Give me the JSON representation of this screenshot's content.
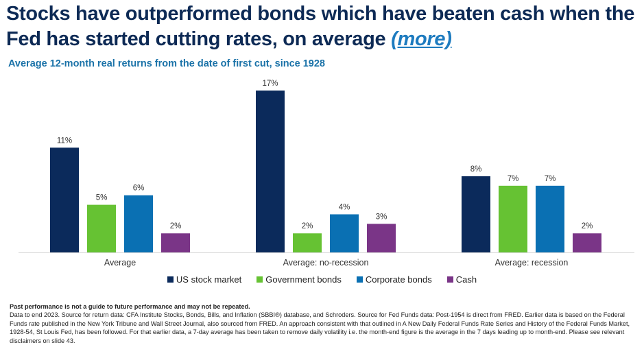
{
  "header": {
    "title": "Stocks have outperformed bonds which have beaten cash when the Fed has started cutting rates, on average ",
    "more_link": "(more)",
    "subtitle": "Average 12-month real returns from the date of first cut, since 1928"
  },
  "chart_data": {
    "type": "bar",
    "title": "Average 12-month real returns from the date of first cut, since 1928",
    "xlabel": "",
    "ylabel": "",
    "ylim": [
      0,
      17
    ],
    "grid": false,
    "legend_position": "bottom",
    "categories": [
      "Average",
      "Average: no-recession",
      "Average: recession"
    ],
    "series": [
      {
        "name": "US stock market",
        "color": "#0b2a5b",
        "values": [
          11,
          17,
          8
        ],
        "labels": [
          "11%",
          "17%",
          "8%"
        ]
      },
      {
        "name": "Government bonds",
        "color": "#66c233",
        "values": [
          5,
          2,
          7
        ],
        "labels": [
          "5%",
          "2%",
          "7%"
        ]
      },
      {
        "name": "Corporate bonds",
        "color": "#0a70b3",
        "values": [
          6,
          4,
          7
        ],
        "labels": [
          "6%",
          "4%",
          "7%"
        ]
      },
      {
        "name": "Cash",
        "color": "#7a3587",
        "values": [
          2,
          3,
          2
        ],
        "labels": [
          "2%",
          "3%",
          "2%"
        ]
      }
    ]
  },
  "footer": {
    "disclaimer": "Past performance is not a guide to future performance and may not be repeated.",
    "notes": "Data to end 2023. Source for return data: CFA Institute Stocks, Bonds, Bills, and Inflation (SBBI®) database, and Schroders. Source for Fed Funds data: Post-1954 is direct from FRED. Earlier data is based on the Federal Funds rate published in the New York Tribune and Wall Street Journal, also sourced from FRED. An approach consistent with that outlined in A New Daily Federal Funds Rate Series and History of the Federal Funds Market, 1928-54, St Louis Fed, has been followed. For that earlier data, a 7-day average has been taken to remove daily volatility i.e. the month-end figure is the average in the 7 days leading up to month-end. Please see relevant disclaimers on slide 43."
  }
}
